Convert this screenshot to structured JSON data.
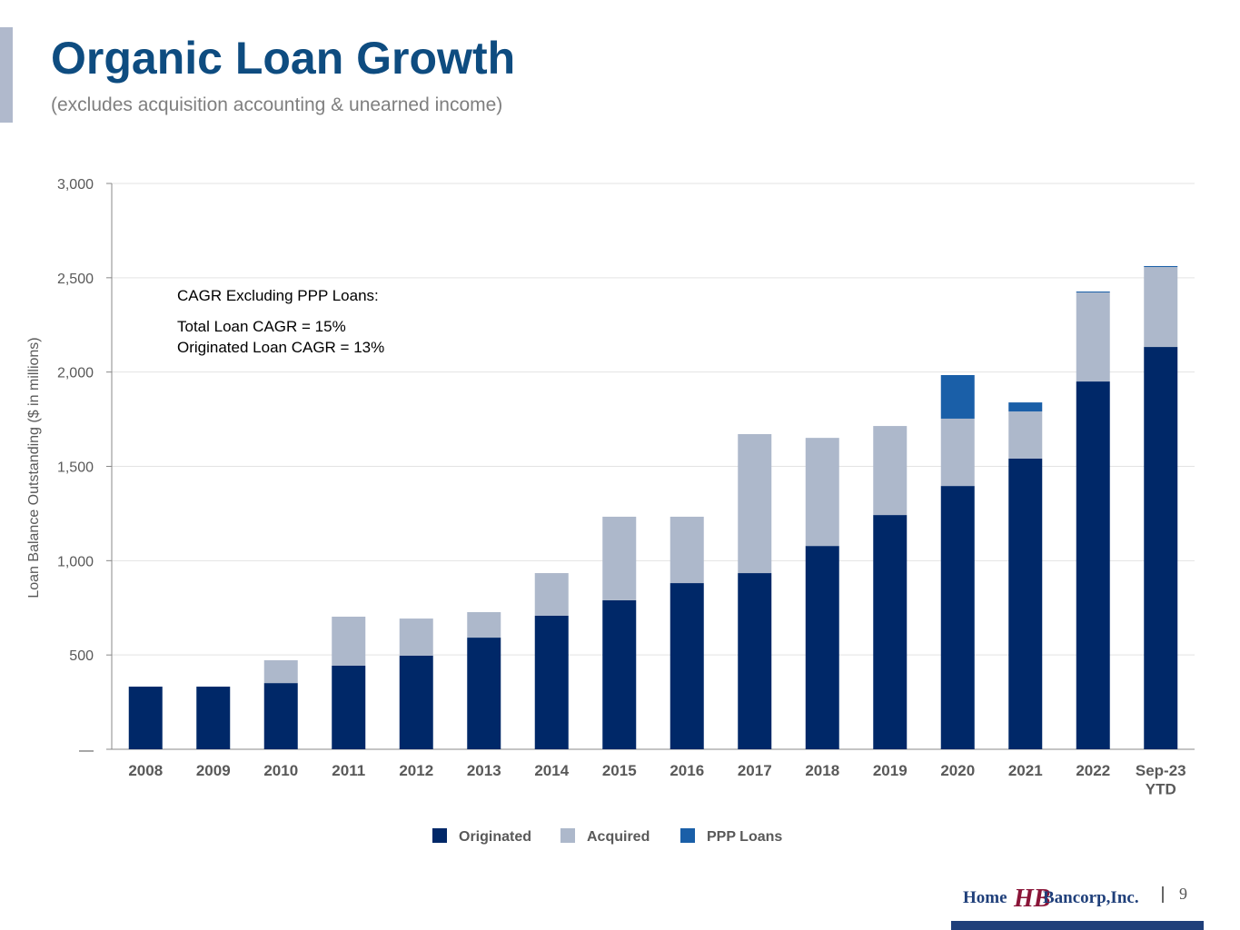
{
  "header": {
    "title": "Organic Loan Growth",
    "subtitle": "(excludes acquisition accounting & unearned income)"
  },
  "chart_data": {
    "type": "stacked_bar",
    "y_label": "Loan Balance Outstanding ($ in millions)",
    "annotations": [
      "CAGR Excluding PPP Loans:",
      "Total Loan CAGR = 15%",
      "Originated Loan CAGR = 13%"
    ],
    "categories": [
      "2008",
      "2009",
      "2010",
      "2011",
      "2012",
      "2013",
      "2014",
      "2015",
      "2016",
      "2017",
      "2018",
      "2019",
      "2020",
      "2021",
      "2022",
      "Sep-23\nYTD"
    ],
    "series": [
      {
        "name": "Originated",
        "color": "#002868",
        "values": [
          332,
          332,
          351,
          443,
          496,
          592,
          708,
          790,
          881,
          934,
          1078,
          1242,
          1396,
          1541,
          1950,
          2133
        ]
      },
      {
        "name": "Acquired",
        "color": "#adb8cb",
        "values": [
          0,
          0,
          121,
          260,
          197,
          135,
          226,
          443,
          352,
          737,
          573,
          472,
          357,
          250,
          472,
          424
        ]
      },
      {
        "name": "PPP Loans",
        "color": "#1a5fa8",
        "values": [
          0,
          0,
          0,
          0,
          0,
          0,
          0,
          0,
          0,
          0,
          0,
          0,
          231,
          48,
          5,
          5
        ]
      }
    ],
    "ylim": [
      0,
      3000
    ],
    "yticks": [
      {
        "value": 0,
        "label": "—"
      },
      500,
      {
        "value": 1000,
        "label": "1,000"
      },
      {
        "value": 1500,
        "label": "1,500"
      },
      {
        "value": 2000,
        "label": "2,000"
      },
      {
        "value": 2500,
        "label": "2,500"
      },
      {
        "value": 3000,
        "label": "3,000"
      }
    ],
    "grid": true,
    "legend": "bottom"
  },
  "footer": {
    "logo_left": "Home",
    "logo_mark": "HB",
    "logo_right": "Bancorp,Inc.",
    "page": "9"
  }
}
